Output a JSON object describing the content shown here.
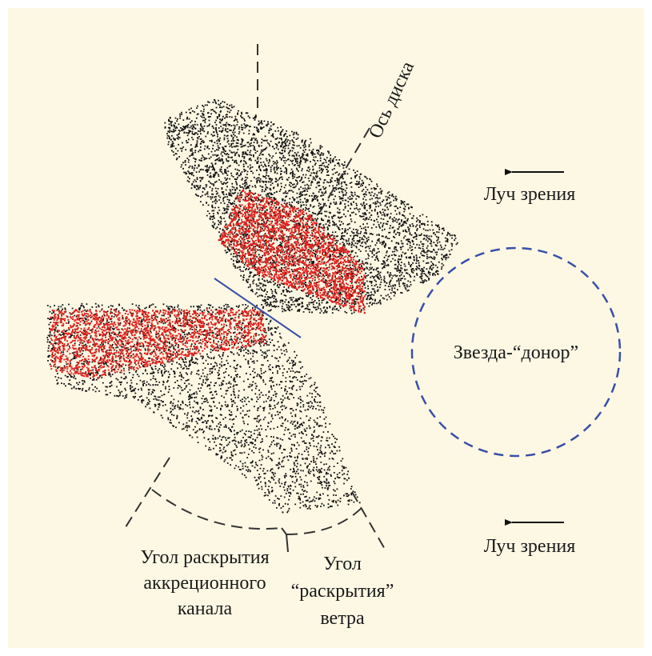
{
  "axis_label": "Ось диска",
  "line_of_sight": [
    "Луч зрения",
    "Луч зрения"
  ],
  "star_label": "Звезда-“донор”",
  "accretion_angle": [
    "Угол раскрытия",
    "аккреционного",
    "канала"
  ],
  "wind_angle": [
    "Угол",
    "“раскрытия”",
    "ветра"
  ]
}
